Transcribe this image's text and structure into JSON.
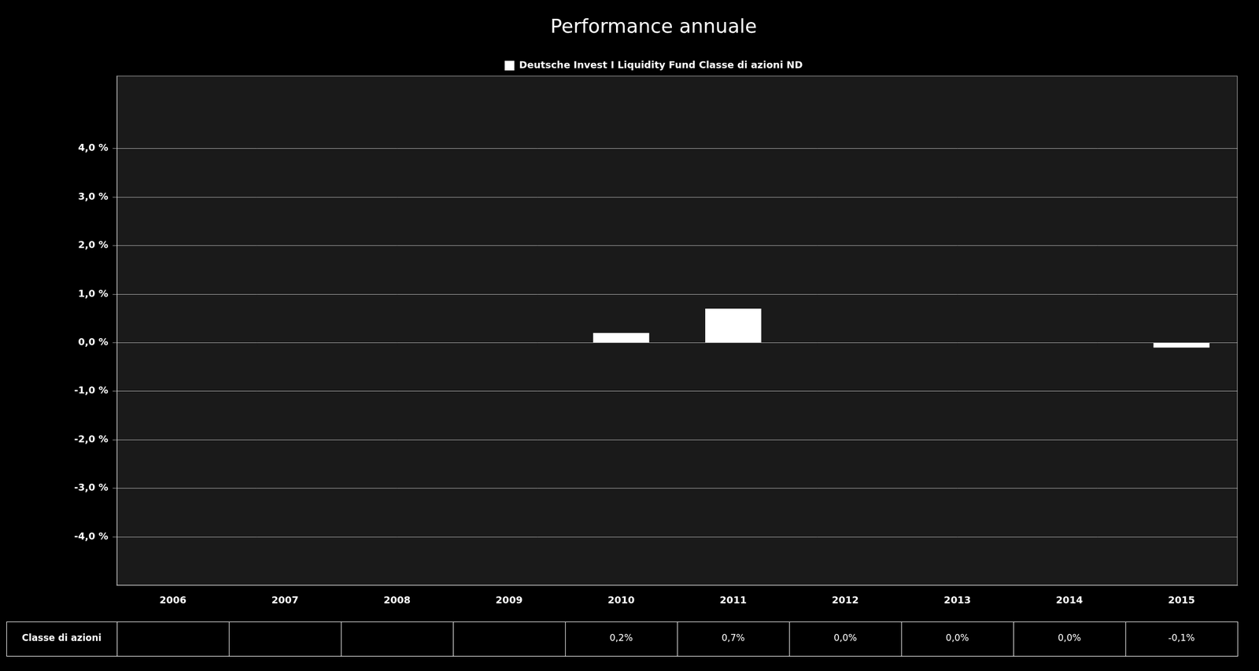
{
  "chart_data": {
    "type": "bar",
    "title": "Performance annuale",
    "categories": [
      "2006",
      "2007",
      "2008",
      "2009",
      "2010",
      "2011",
      "2012",
      "2013",
      "2014",
      "2015"
    ],
    "series": [
      {
        "name": "Deutsche Invest I Liquidity Fund Classe di azioni ND",
        "color": "#ffffff",
        "values": [
          null,
          null,
          null,
          null,
          0.002,
          0.007,
          0.0,
          0.0,
          0.0,
          -0.001
        ],
        "value_labels": [
          null,
          null,
          null,
          null,
          "0,2%",
          "0,7%",
          "0,0%",
          "0,0%",
          "0,0%",
          "-0,1%"
        ]
      }
    ],
    "table_label": "Classe di azioni",
    "ylim": [
      -0.05,
      0.055
    ],
    "yticks": [
      {
        "value": -0.04,
        "label": "-4,0 %"
      },
      {
        "value": -0.03,
        "label": "-3,0 %"
      },
      {
        "value": -0.02,
        "label": "-2,0 %"
      },
      {
        "value": -0.01,
        "label": "-1,0 %"
      },
      {
        "value": 0.0,
        "label": "0,0 %"
      },
      {
        "value": 0.01,
        "label": "1,0 %"
      },
      {
        "value": 0.02,
        "label": "2,0 %"
      },
      {
        "value": 0.03,
        "label": "3,0 %"
      },
      {
        "value": 0.04,
        "label": "4,0 %"
      }
    ],
    "grid": true,
    "legend": "top"
  }
}
